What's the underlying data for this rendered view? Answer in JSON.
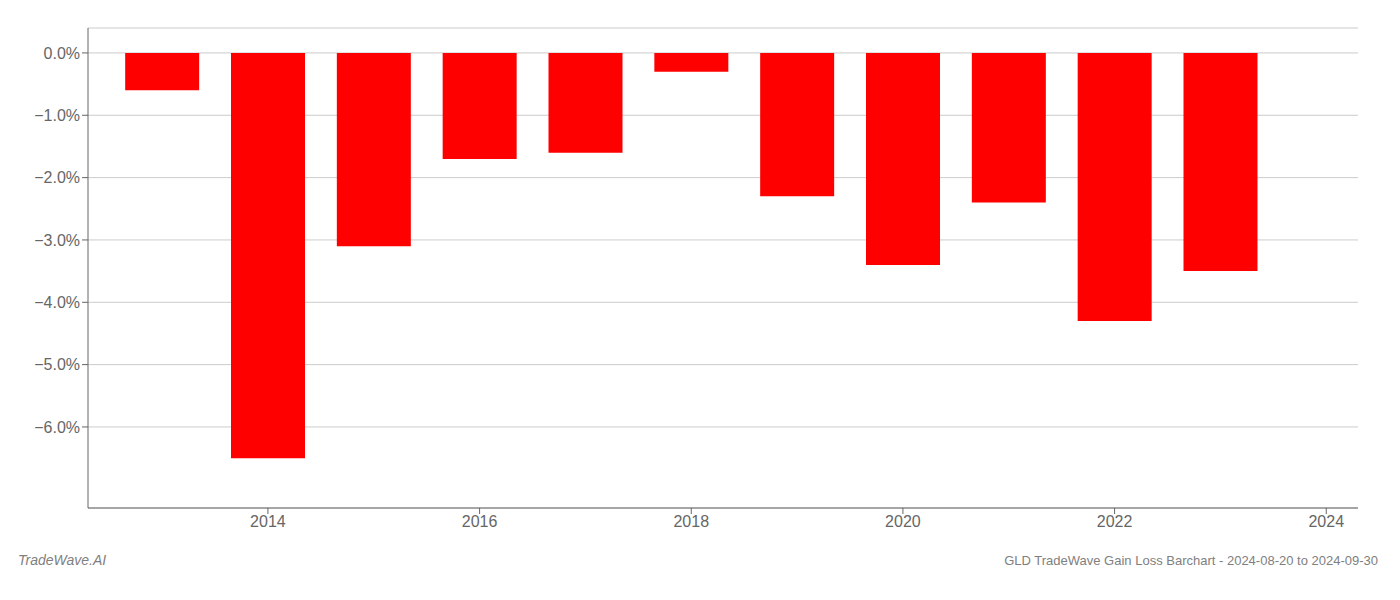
{
  "chart_data": {
    "type": "bar",
    "title": "GLD TradeWave Gain Loss Barchart - 2024-08-20 to 2024-09-30",
    "annotations": [
      "TradeWave.AI"
    ],
    "x": [
      2013,
      2014,
      2015,
      2016,
      2017,
      2018,
      2019,
      2020,
      2021,
      2022,
      2023
    ],
    "values": [
      -0.006,
      -0.065,
      -0.031,
      -0.017,
      -0.016,
      -0.003,
      -0.023,
      -0.034,
      -0.024,
      -0.043,
      -0.035
    ],
    "color": "#ff0000",
    "xlim": [
      2012.3,
      2024.3
    ],
    "xticks": [
      2014,
      2016,
      2018,
      2020,
      2022,
      2024
    ],
    "ylim": [
      -0.073,
      0.004
    ],
    "yticks": [
      {
        "value": 0.0,
        "label": "0.0%"
      },
      {
        "value": -0.01,
        "label": "−1.0%"
      },
      {
        "value": -0.02,
        "label": "−2.0%"
      },
      {
        "value": -0.03,
        "label": "−3.0%"
      },
      {
        "value": -0.04,
        "label": "−4.0%"
      },
      {
        "value": -0.05,
        "label": "−5.0%"
      },
      {
        "value": -0.06,
        "label": "−6.0%"
      }
    ],
    "grid": true
  }
}
